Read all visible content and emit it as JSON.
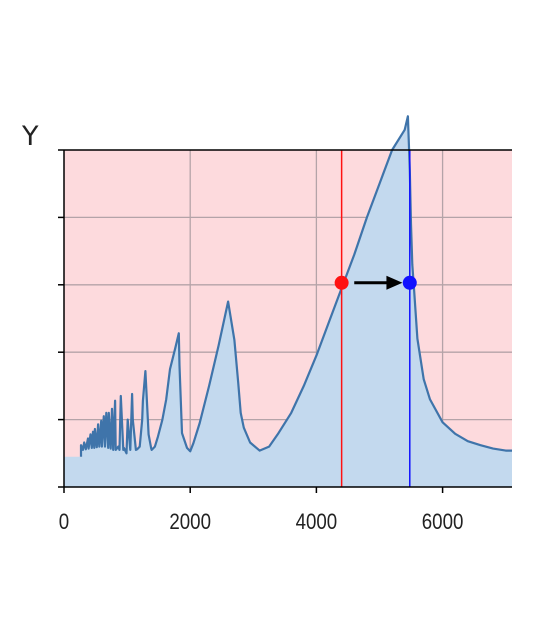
{
  "chart_data": {
    "type": "area",
    "title": "",
    "xlabel": "",
    "ylabel": "Y",
    "xlim": [
      0,
      7100
    ],
    "ylim": [
      0,
      5
    ],
    "x_ticks": [
      0,
      2000,
      4000,
      6000
    ],
    "x_tick_labels": [
      "0",
      "2000",
      "4000",
      "6000"
    ],
    "y_ticks": [
      0,
      1,
      2,
      3,
      4,
      5
    ],
    "y_tick_labels": [
      "",
      "",
      "",
      "",
      "",
      ""
    ],
    "grid": true,
    "legend": "none",
    "colors": {
      "background": "#fddadd",
      "area_fill": "#c3d9ee",
      "line": "#3f74aa",
      "grid": "#b4a3a8",
      "red_marker": "#ff1111",
      "blue_marker": "#1111ff",
      "arrow": "#000000"
    },
    "series": [
      {
        "x": [
          0,
          270,
          270,
          300,
          320,
          345,
          380,
          390,
          420,
          440,
          460,
          480,
          490,
          520,
          540,
          560,
          590,
          600,
          630,
          650,
          670,
          700,
          710,
          740,
          760,
          780,
          810,
          820,
          860,
          880,
          900,
          940,
          950,
          990,
          1010,
          1050,
          1080,
          1090,
          1140,
          1160,
          1200,
          1240,
          1250,
          1290,
          1340,
          1380,
          1390,
          1440,
          1490,
          1560,
          1620,
          1680,
          1760,
          1820,
          1830,
          1870,
          1950,
          2000,
          2050,
          2150,
          2300,
          2450,
          2600,
          2700,
          2760,
          2800,
          2850,
          2950,
          3100,
          3250,
          3400,
          3600,
          3800,
          4000,
          4200,
          4400,
          4600,
          4800,
          5000,
          5200,
          5400,
          5450,
          5480,
          5500,
          5520,
          5550,
          5600,
          5700,
          5800,
          6000,
          6200,
          6400,
          6600,
          6800,
          7000,
          7100
        ],
        "y": [
          0.45,
          0.45,
          0.62,
          0.55,
          0.66,
          0.56,
          0.72,
          0.57,
          0.78,
          0.58,
          0.82,
          0.58,
          0.86,
          0.59,
          0.93,
          0.6,
          0.98,
          0.6,
          1.05,
          0.6,
          1.1,
          0.58,
          1.1,
          0.57,
          1.16,
          0.55,
          1.28,
          0.55,
          0.6,
          0.55,
          1.35,
          0.55,
          0.58,
          0.5,
          1.0,
          0.55,
          1.38,
          1.0,
          0.55,
          0.56,
          0.6,
          1.0,
          1.28,
          1.72,
          0.78,
          0.58,
          0.55,
          0.6,
          0.75,
          1.0,
          1.3,
          1.75,
          2.05,
          2.28,
          1.8,
          0.8,
          0.58,
          0.53,
          0.65,
          0.95,
          1.5,
          2.1,
          2.75,
          2.18,
          1.55,
          1.1,
          0.88,
          0.66,
          0.54,
          0.6,
          0.8,
          1.1,
          1.5,
          1.95,
          2.45,
          2.95,
          3.45,
          4.0,
          4.5,
          5.0,
          5.3,
          5.5,
          4.7,
          3.9,
          3.3,
          2.9,
          2.2,
          1.6,
          1.3,
          0.96,
          0.79,
          0.68,
          0.62,
          0.57,
          0.54,
          0.54
        ]
      }
    ],
    "vertical_lines": [
      {
        "name": "red-line",
        "x": 4400,
        "color": "#ff1111"
      },
      {
        "name": "blue-line",
        "x": 5480,
        "color": "#1111ff"
      }
    ],
    "markers": [
      {
        "name": "red-marker",
        "x": 4400,
        "y": 3.03,
        "color": "#ff1111"
      },
      {
        "name": "blue-marker",
        "x": 5480,
        "y": 3.03,
        "color": "#1111ff"
      }
    ],
    "arrow": {
      "from_x": 4600,
      "to_x": 5300,
      "y": 3.03
    }
  }
}
